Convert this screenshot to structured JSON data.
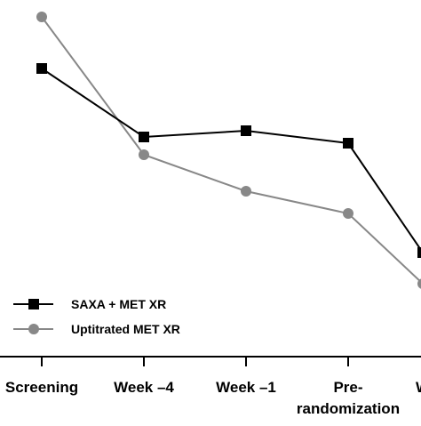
{
  "chart_data": {
    "type": "line",
    "categories": [
      "Screening",
      "Week –4",
      "Week –1",
      "Pre-randomization",
      "W"
    ],
    "category_lines": [
      [
        "Screening"
      ],
      [
        "Week –4"
      ],
      [
        "Week –1"
      ],
      [
        "Pre-",
        "randomization"
      ],
      [
        "W"
      ]
    ],
    "title": "",
    "xlabel": "",
    "ylabel": "",
    "y_axis_visible": false,
    "ylim": [
      0,
      474
    ],
    "series": [
      {
        "name": "SAXA + MET XR",
        "marker": "square",
        "color": "#000000",
        "values": [
          397,
          320,
          327,
          313,
          190
        ]
      },
      {
        "name": "Uptitrated MET XR",
        "marker": "circle",
        "color": "#888888",
        "values": [
          455,
          300,
          259,
          234,
          155
        ]
      }
    ],
    "legend": {
      "position": "bottom-left",
      "entries": [
        "SAXA + MET XR",
        "Uptitrated MET XR"
      ]
    },
    "grid": false
  }
}
